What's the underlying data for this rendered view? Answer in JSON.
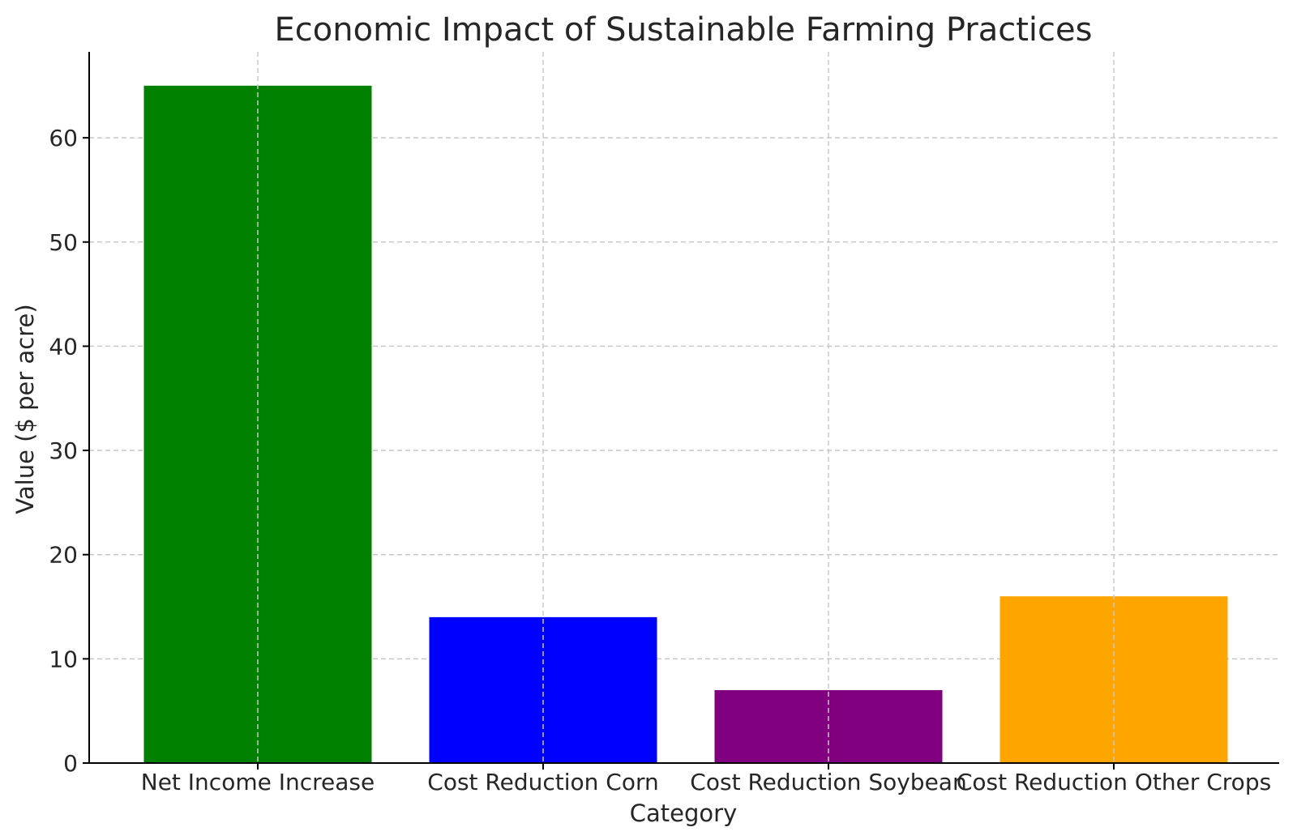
{
  "chart_data": {
    "type": "bar",
    "title": "Economic Impact of Sustainable Farming Practices",
    "xlabel": "Category",
    "ylabel": "Value ($ per acre)",
    "categories": [
      "Net Income Increase",
      "Cost Reduction Corn",
      "Cost Reduction Soybean",
      "Cost Reduction Other Crops"
    ],
    "values": [
      65,
      14,
      7,
      16
    ],
    "colors": [
      "#008000",
      "#0000ff",
      "#800080",
      "#ffa500"
    ],
    "ylim": [
      0,
      68.25
    ],
    "yticks": [
      0,
      10,
      20,
      30,
      40,
      50,
      60
    ],
    "grid": true
  }
}
